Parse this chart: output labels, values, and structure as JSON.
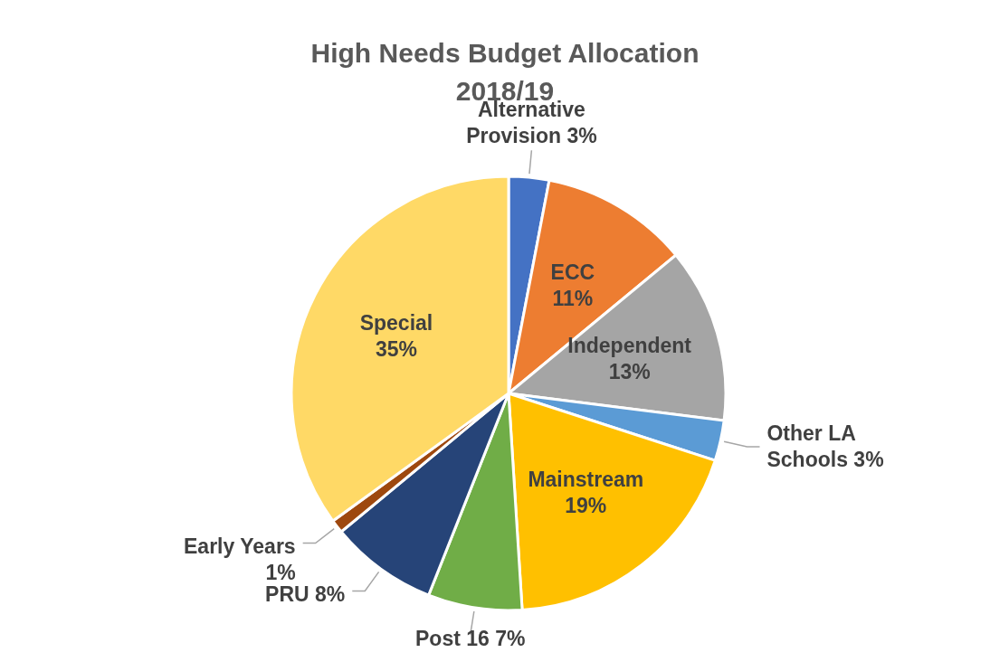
{
  "chart_data": {
    "type": "pie",
    "title": "High Needs Budget Allocation 2018/19",
    "categories": [
      "Alternative Provision",
      "ECC",
      "Independent",
      "Other LA Schools",
      "Mainstream",
      "Post 16",
      "PRU",
      "Early Years",
      "Special"
    ],
    "values": [
      3,
      11,
      13,
      3,
      19,
      7,
      8,
      1,
      35
    ],
    "value_labels": [
      "3%",
      "11%",
      "13%",
      "3%",
      "19%",
      "7%",
      "8%",
      "1%",
      "35%"
    ],
    "colors": [
      "#4472c4",
      "#ed7d31",
      "#a5a5a5",
      "#5b9bd5",
      "#ffc000",
      "#70ad47",
      "#264478",
      "#9e480e",
      "#ffd966"
    ]
  }
}
